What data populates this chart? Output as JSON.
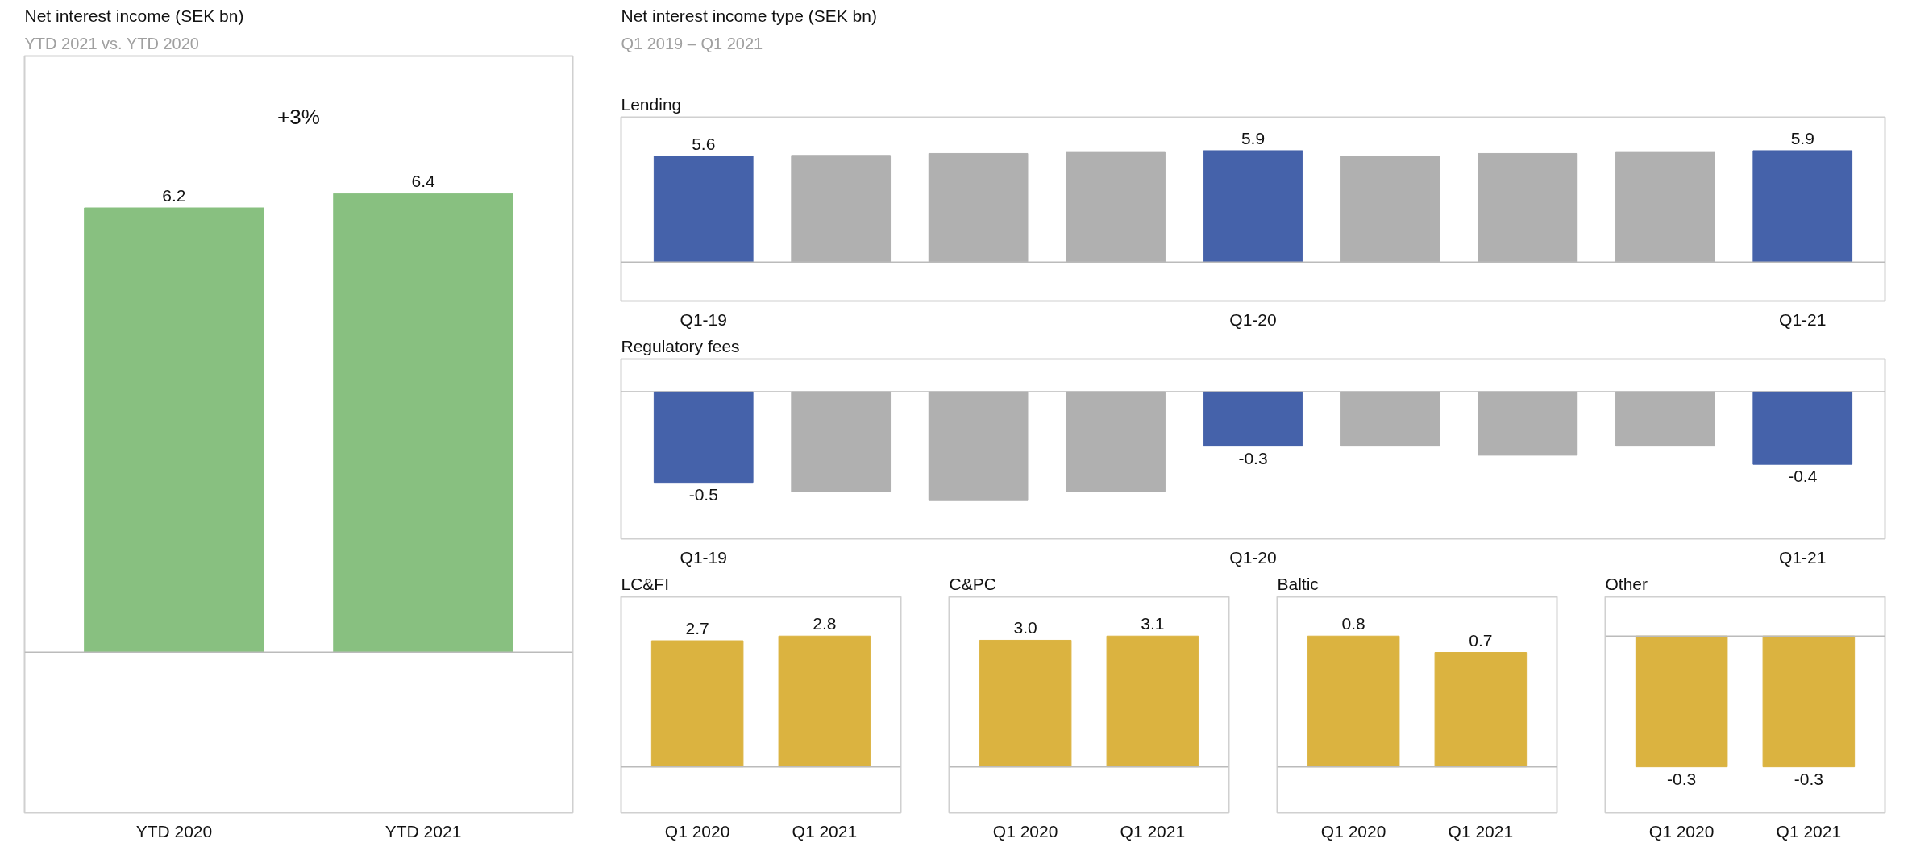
{
  "chart_data": [
    {
      "type": "bar",
      "title": "Net interest income (SEK bn)",
      "subtitle": "YTD 2021 vs. YTD 2020",
      "categories": [
        "YTD 2020",
        "YTD 2021"
      ],
      "values": [
        6.2,
        6.4
      ],
      "color": "#88c080",
      "data_labels": true,
      "annotations": [
        "+3%"
      ]
    },
    {
      "type": "other",
      "title": "Net interest income type (SEK bn)",
      "subtitle": "Q1 2019 – Q1 2021"
    },
    {
      "type": "bar",
      "title": "Lending",
      "categories": [
        "Q1-19",
        null,
        null,
        null,
        "Q1-20",
        null,
        null,
        null,
        "Q1-21"
      ],
      "values": [
        5.6,
        5.65,
        5.75,
        5.85,
        5.9,
        5.6,
        5.75,
        5.85,
        5.9
      ],
      "colors": [
        "#4562aa",
        "#b0b0b0",
        "#b0b0b0",
        "#b0b0b0",
        "#4562aa",
        "#b0b0b0",
        "#b0b0b0",
        "#b0b0b0",
        "#4562aa"
      ],
      "value_labels": [
        "5.6",
        null,
        null,
        null,
        "5.9",
        null,
        null,
        null,
        "5.9"
      ]
    },
    {
      "type": "bar",
      "title": "Regulatory fees",
      "categories": [
        "Q1-19",
        null,
        null,
        null,
        "Q1-20",
        null,
        null,
        null,
        "Q1-21"
      ],
      "values": [
        -0.5,
        -0.55,
        -0.6,
        -0.55,
        -0.3,
        -0.3,
        -0.35,
        -0.3,
        -0.4
      ],
      "colors": [
        "#4562aa",
        "#b0b0b0",
        "#b0b0b0",
        "#b0b0b0",
        "#4562aa",
        "#b0b0b0",
        "#b0b0b0",
        "#b0b0b0",
        "#4562aa"
      ],
      "value_labels": [
        "-0.5",
        null,
        null,
        null,
        "-0.3",
        null,
        null,
        null,
        "-0.4"
      ]
    },
    {
      "type": "bar",
      "title": "LC&FI",
      "categories": [
        "Q1 2020",
        "Q1 2021"
      ],
      "values": [
        2.7,
        2.8
      ],
      "color": "#dbb340",
      "value_labels": [
        "2.7",
        "2.8"
      ]
    },
    {
      "type": "bar",
      "title": "C&PC",
      "categories": [
        "Q1 2020",
        "Q1 2021"
      ],
      "values": [
        3.0,
        3.1
      ],
      "color": "#dbb340",
      "value_labels": [
        "3.0",
        "3.1"
      ]
    },
    {
      "type": "bar",
      "title": "Baltic",
      "categories": [
        "Q1 2020",
        "Q1 2021"
      ],
      "values": [
        0.8,
        0.7
      ],
      "color": "#dbb340",
      "value_labels": [
        "0.8",
        "0.7"
      ]
    },
    {
      "type": "bar",
      "title": "Other",
      "categories": [
        "Q1 2020",
        "Q1 2021"
      ],
      "values": [
        -0.3,
        -0.3
      ],
      "color": "#dbb340",
      "value_labels": [
        "-0.3",
        "-0.3"
      ]
    }
  ]
}
